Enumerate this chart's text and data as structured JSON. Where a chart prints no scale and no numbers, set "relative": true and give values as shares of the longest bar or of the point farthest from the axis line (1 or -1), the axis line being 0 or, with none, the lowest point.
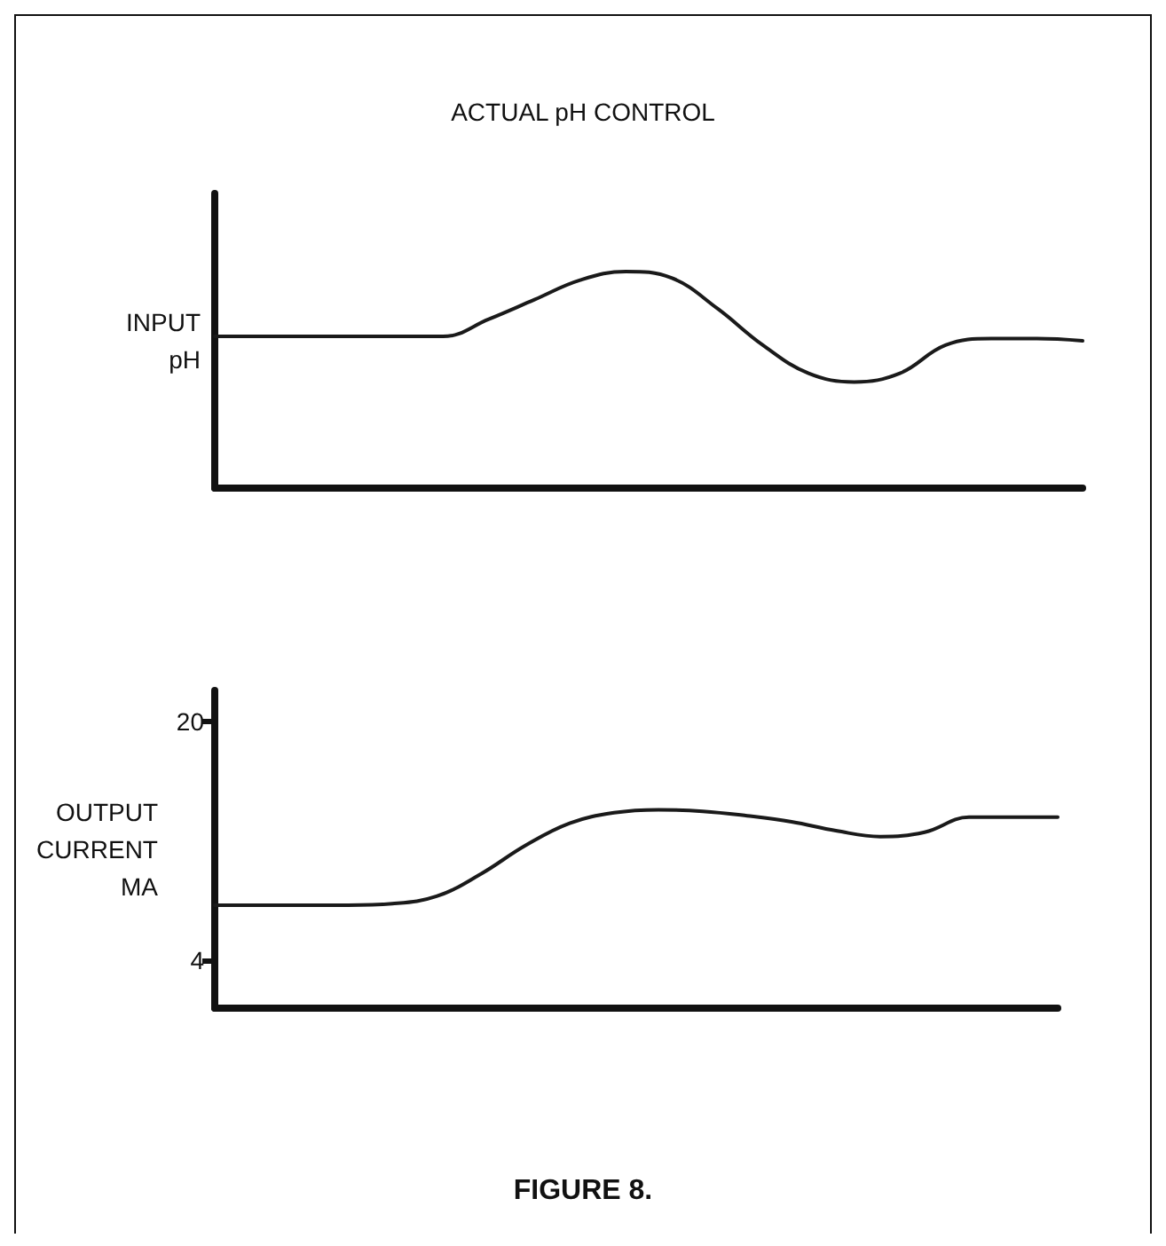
{
  "chart_data": [
    {
      "type": "line",
      "title": "ACTUAL pH CONTROL",
      "ylabel": "INPUT\npH",
      "relative": true,
      "tick_labels": false,
      "grid": false,
      "marker": "none",
      "line_style": "solid",
      "categories": [
        null,
        null,
        null,
        null,
        null,
        null,
        null,
        null,
        null,
        null,
        null,
        null,
        null,
        null,
        null,
        null,
        null,
        null,
        null,
        null
      ],
      "series": [
        {
          "color": "#1a1a1a",
          "values": [
            0.7,
            0.7,
            0.7,
            0.7,
            0.7,
            0.7,
            0.78,
            0.87,
            0.96,
            1,
            0.97,
            0.83,
            0.66,
            0.53,
            0.49,
            0.53,
            0.66,
            0.69,
            0.69,
            0.68
          ]
        }
      ]
    },
    {
      "type": "line",
      "ylabel": "OUTPUT\nCURRENT\nMA",
      "annotations": [
        "FIGURE 8."
      ],
      "ylim": [
        0.8,
        22.1
      ],
      "yticks": [
        4,
        20
      ],
      "tick_labels": "y",
      "grid": false,
      "marker": "none",
      "line_style": "solid",
      "categories": [
        null,
        null,
        null,
        null,
        null,
        null,
        null,
        null,
        null,
        null,
        null,
        null,
        null,
        null,
        null,
        null,
        null,
        null,
        null,
        null
      ],
      "series": [
        {
          "color": "#1a1a1a",
          "values": [
            7.7,
            7.7,
            7.7,
            7.7,
            7.8,
            8.3,
            9.8,
            11.7,
            13.2,
            13.9,
            14.1,
            14.0,
            13.7,
            13.3,
            12.7,
            12.3,
            12.6,
            13.6,
            13.6,
            13.6
          ]
        }
      ]
    }
  ]
}
